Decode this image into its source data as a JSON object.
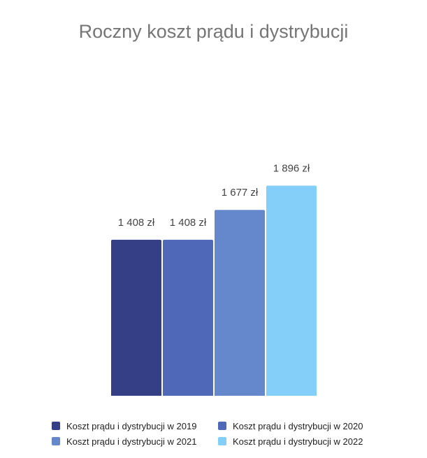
{
  "chart_data": {
    "type": "bar",
    "title": "Roczny koszt prądu i dystrybucji",
    "xlabel": "",
    "ylabel": "",
    "ylim": [
      0,
      2200
    ],
    "grid": false,
    "legend_position": "bottom",
    "series": [
      {
        "name": "Koszt prądu i dystrybucji w 2019",
        "value": 1408,
        "label": "1 408 zł",
        "color": "#353f85"
      },
      {
        "name": "Koszt prądu i dystrybucji w 2020",
        "value": 1408,
        "label": "1 408 zł",
        "color": "#5068b8"
      },
      {
        "name": "Koszt prądu i dystrybucji w 2021",
        "value": 1677,
        "label": "1 677 zł",
        "color": "#6488cb"
      },
      {
        "name": "Koszt prądu i dystrybucji w 2022",
        "value": 1896,
        "label": "1 896 zł",
        "color": "#83cff9"
      }
    ]
  }
}
